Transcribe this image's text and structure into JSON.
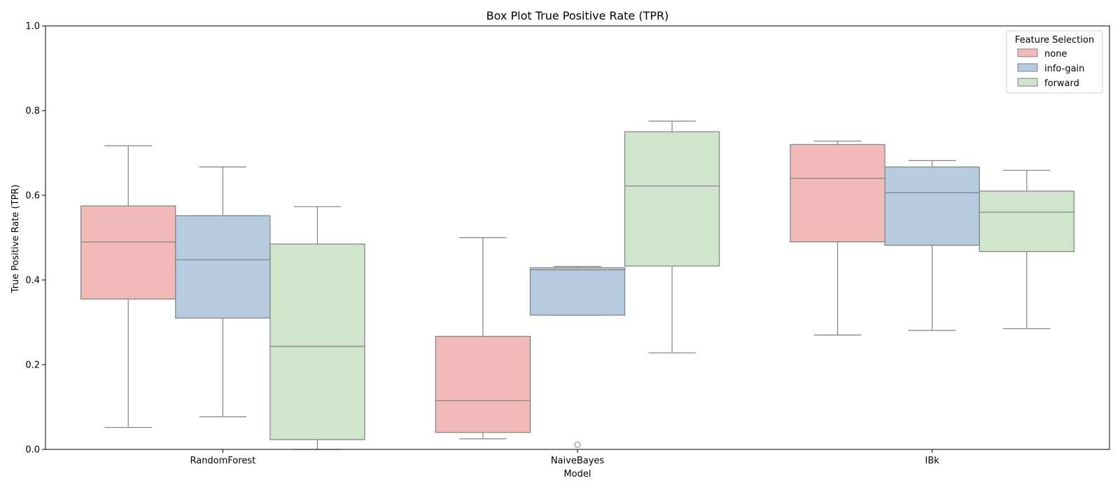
{
  "chart_data": {
    "type": "box",
    "title": "Box Plot True Positive Rate (TPR)",
    "xlabel": "Model",
    "ylabel": "True Positive Rate (TPR)",
    "ylim": [
      0,
      1
    ],
    "yticks": [
      "0.0",
      "0.2",
      "0.4",
      "0.6",
      "0.8",
      "1.0"
    ],
    "categories": [
      "RandomForest",
      "NaiveBayes",
      "IBk"
    ],
    "legend": {
      "title": "Feature Selection",
      "position": "top-right"
    },
    "grid": false,
    "series": [
      {
        "name": "none",
        "color": "#f1b9b7",
        "boxes": [
          {
            "whisker_low": 0.052,
            "q1": 0.355,
            "median": 0.49,
            "q3": 0.575,
            "whisker_high": 0.717,
            "outliers": []
          },
          {
            "whisker_low": 0.025,
            "q1": 0.04,
            "median": 0.115,
            "q3": 0.267,
            "whisker_high": 0.5,
            "outliers": []
          },
          {
            "whisker_low": 0.27,
            "q1": 0.49,
            "median": 0.64,
            "q3": 0.72,
            "whisker_high": 0.728,
            "outliers": []
          }
        ]
      },
      {
        "name": "info-gain",
        "color": "#b6cbdf",
        "boxes": [
          {
            "whisker_low": 0.077,
            "q1": 0.31,
            "median": 0.448,
            "q3": 0.552,
            "whisker_high": 0.667,
            "outliers": []
          },
          {
            "whisker_low": 0.317,
            "q1": 0.317,
            "median": 0.424,
            "q3": 0.429,
            "whisker_high": 0.432,
            "outliers": [
              0.011
            ]
          },
          {
            "whisker_low": 0.281,
            "q1": 0.482,
            "median": 0.606,
            "q3": 0.667,
            "whisker_high": 0.682,
            "outliers": []
          }
        ]
      },
      {
        "name": "forward",
        "color": "#d0e6cc",
        "boxes": [
          {
            "whisker_low": 0.0,
            "q1": 0.023,
            "median": 0.243,
            "q3": 0.485,
            "whisker_high": 0.573,
            "outliers": []
          },
          {
            "whisker_low": 0.228,
            "q1": 0.433,
            "median": 0.622,
            "q3": 0.75,
            "whisker_high": 0.775,
            "outliers": []
          },
          {
            "whisker_low": 0.285,
            "q1": 0.467,
            "median": 0.56,
            "q3": 0.61,
            "whisker_high": 0.659,
            "outliers": []
          }
        ]
      }
    ]
  }
}
